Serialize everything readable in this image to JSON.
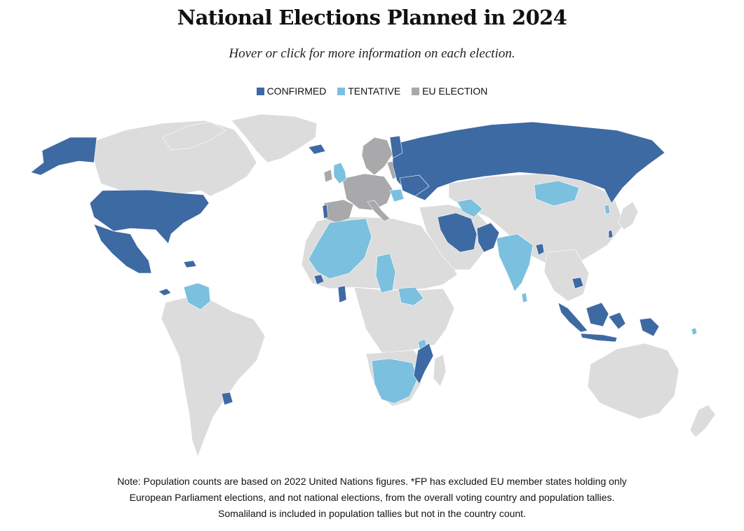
{
  "title": "National Elections Planned in 2024",
  "subtitle": "Hover or click for more information on each election.",
  "legend": [
    {
      "label": "CONFIRMED",
      "color": "#3e6aa3"
    },
    {
      "label": "TENTATIVE",
      "color": "#7cc0df"
    },
    {
      "label": "EU ELECTION",
      "color": "#a9a9ab"
    }
  ],
  "colors": {
    "land": "#dcdcdc",
    "confirmed": "#3e6aa3",
    "tentative": "#7cc0df",
    "eu": "#a9a9ab",
    "background": "#ffffff"
  },
  "note": {
    "line1": "Note: Population counts are based on 2022 United Nations figures. *FP has excluded EU member states holding only",
    "line2": "European Parliament elections, and not national elections, from the overall voting country and population tallies.",
    "line3": "Somaliland is included in population tallies but not in the country count."
  }
}
